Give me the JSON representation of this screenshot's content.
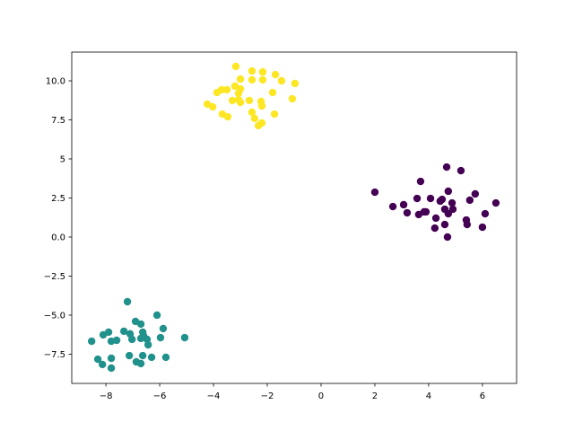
{
  "chart_data": {
    "type": "scatter",
    "xlim": [
      -9.27,
      7.27
    ],
    "ylim": [
      -9.37,
      11.84
    ],
    "xticks": [
      {
        "value": -8,
        "label": "−8"
      },
      {
        "value": -6,
        "label": "−6"
      },
      {
        "value": -4,
        "label": "−4"
      },
      {
        "value": -2,
        "label": "−2"
      },
      0,
      2,
      4,
      6
    ],
    "yticks": [
      {
        "value": -7.5,
        "label": "−7.5"
      },
      {
        "value": -5,
        "label": "−5.0"
      },
      {
        "value": -2.5,
        "label": "−2.5"
      },
      {
        "value": 0,
        "label": "0.0"
      },
      2.5,
      5,
      7.5,
      {
        "value": 10,
        "label": "10.0"
      }
    ],
    "grid": false,
    "series": [
      {
        "color": "#440154",
        "x": [
          2.0,
          2.67,
          3.07,
          3.2,
          3.7,
          3.57,
          3.63,
          3.83,
          3.9,
          4.07,
          4.27,
          4.23,
          4.43,
          4.5,
          4.6,
          4.67,
          4.73,
          4.73,
          4.6,
          4.7,
          4.87,
          4.9,
          5.2,
          5.4,
          5.43,
          5.53,
          5.73,
          6.0,
          6.1,
          6.5
        ],
        "y": [
          2.87,
          1.95,
          2.07,
          1.55,
          3.56,
          2.47,
          1.44,
          1.61,
          1.61,
          2.47,
          1.21,
          0.57,
          2.3,
          2.41,
          1.78,
          4.48,
          2.93,
          1.49,
          0.8,
          0.0,
          2.18,
          1.78,
          4.25,
          1.09,
          0.8,
          2.36,
          2.76,
          0.63,
          1.49,
          2.18
        ]
      },
      {
        "color": "#fde725",
        "x": [
          -3.17,
          -2.57,
          -2.17,
          -1.7,
          -1.47,
          -0.97,
          -3.0,
          -2.57,
          -2.17,
          -3.2,
          -3.0,
          -3.7,
          -3.5,
          -3.87,
          -3.07,
          -1.8,
          -3.3,
          -3.07,
          -3.0,
          -2.67,
          -2.23,
          -2.2,
          -1.07,
          -4.23,
          -4.03,
          -3.67,
          -3.47,
          -2.57,
          -2.47,
          -1.73,
          -2.2,
          -2.33
        ],
        "y": [
          10.92,
          10.63,
          10.57,
          10.4,
          10.0,
          9.83,
          10.11,
          10.06,
          10.06,
          9.66,
          9.48,
          9.43,
          9.43,
          9.25,
          9.2,
          9.25,
          8.74,
          8.79,
          8.62,
          8.74,
          8.68,
          8.39,
          8.85,
          8.51,
          8.33,
          7.87,
          7.7,
          7.99,
          7.59,
          7.87,
          7.3,
          7.13
        ]
      },
      {
        "color": "#21918c",
        "x": [
          -7.2,
          -6.1,
          -6.9,
          -6.7,
          -5.87,
          -7.33,
          -7.9,
          -8.1,
          -7.1,
          -6.63,
          -6.6,
          -7.03,
          -6.7,
          -6.47,
          -5.97,
          -5.07,
          -8.53,
          -7.8,
          -7.6,
          -6.43,
          -7.13,
          -6.63,
          -6.3,
          -5.77,
          -8.3,
          -7.8,
          -6.87,
          -6.7,
          -8.13,
          -7.8
        ],
        "y": [
          -4.14,
          -5.0,
          -5.4,
          -5.57,
          -5.86,
          -6.03,
          -6.09,
          -6.26,
          -6.2,
          -6.09,
          -6.32,
          -6.55,
          -6.49,
          -6.55,
          -6.44,
          -6.44,
          -6.67,
          -6.67,
          -6.61,
          -6.9,
          -7.59,
          -7.59,
          -7.7,
          -7.7,
          -7.82,
          -7.76,
          -7.99,
          -8.1,
          -8.16,
          -8.39
        ]
      }
    ]
  }
}
